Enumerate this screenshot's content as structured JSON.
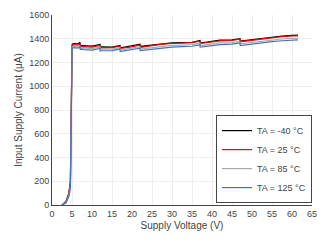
{
  "chart_data": {
    "type": "line",
    "xlabel": "Supply Voltage (V)",
    "ylabel": "Input Supply Current (μA)",
    "xlim": [
      0,
      65
    ],
    "ylim": [
      0,
      1600
    ],
    "xticks": [
      0,
      5,
      10,
      15,
      20,
      25,
      30,
      35,
      40,
      45,
      50,
      55,
      60,
      65
    ],
    "yticks": [
      0,
      200,
      400,
      600,
      800,
      1000,
      1200,
      1400,
      1600
    ],
    "grid": true,
    "legend": "lower right",
    "x": [
      2.5,
      3.5,
      4.2,
      4.6,
      5.0,
      5.05,
      5.5,
      6.0,
      6.5,
      7.0,
      7.05,
      7.5,
      8.0,
      10.0,
      12.0,
      12.05,
      12.5,
      15.0,
      17.0,
      17.05,
      17.5,
      20.0,
      22.0,
      22.05,
      22.5,
      25.0,
      27.5,
      30.0,
      32.5,
      35.0,
      37.0,
      37.05,
      37.5,
      40.0,
      42.0,
      45.0,
      47.0,
      47.05,
      47.5,
      50.0,
      52.5,
      55.0,
      57.5,
      60.0,
      61.5
    ],
    "series": [
      {
        "name": "TA = -40 °C",
        "color": "#000000",
        "values": [
          0,
          30,
          100,
          200,
          1300,
          1355,
          1360,
          1358,
          1356,
          1370,
          1340,
          1342,
          1340,
          1338,
          1352,
          1330,
          1332,
          1330,
          1344,
          1325,
          1326,
          1340,
          1355,
          1335,
          1337,
          1348,
          1360,
          1365,
          1368,
          1370,
          1385,
          1365,
          1366,
          1375,
          1388,
          1390,
          1400,
          1380,
          1382,
          1392,
          1403,
          1415,
          1422,
          1428,
          1430
        ]
      },
      {
        "name": "TA = 25 °C",
        "color": "#ff0000",
        "values": [
          0,
          25,
          90,
          180,
          1285,
          1345,
          1350,
          1348,
          1346,
          1358,
          1332,
          1334,
          1332,
          1330,
          1344,
          1322,
          1324,
          1325,
          1338,
          1318,
          1320,
          1332,
          1348,
          1328,
          1330,
          1342,
          1355,
          1360,
          1364,
          1367,
          1380,
          1360,
          1362,
          1372,
          1382,
          1386,
          1396,
          1375,
          1377,
          1388,
          1398,
          1410,
          1418,
          1423,
          1425
        ]
      },
      {
        "name": "TA = 85 °C",
        "color": "#aaaaaa",
        "values": [
          0,
          22,
          80,
          160,
          1275,
          1330,
          1335,
          1333,
          1331,
          1343,
          1320,
          1322,
          1320,
          1316,
          1330,
          1310,
          1312,
          1312,
          1326,
          1304,
          1306,
          1318,
          1333,
          1313,
          1315,
          1326,
          1338,
          1344,
          1347,
          1350,
          1362,
          1344,
          1345,
          1354,
          1365,
          1368,
          1378,
          1357,
          1359,
          1369,
          1380,
          1390,
          1398,
          1402,
          1404
        ]
      },
      {
        "name": "TA = 125 °C",
        "color": "#4472c4",
        "values": [
          0,
          18,
          70,
          140,
          1262,
          1320,
          1325,
          1323,
          1321,
          1332,
          1310,
          1312,
          1308,
          1305,
          1318,
          1297,
          1299,
          1300,
          1313,
          1292,
          1294,
          1305,
          1320,
          1300,
          1302,
          1312,
          1325,
          1330,
          1334,
          1337,
          1349,
          1330,
          1331,
          1340,
          1351,
          1354,
          1364,
          1343,
          1345,
          1355,
          1366,
          1376,
          1383,
          1388,
          1390
        ]
      }
    ]
  }
}
